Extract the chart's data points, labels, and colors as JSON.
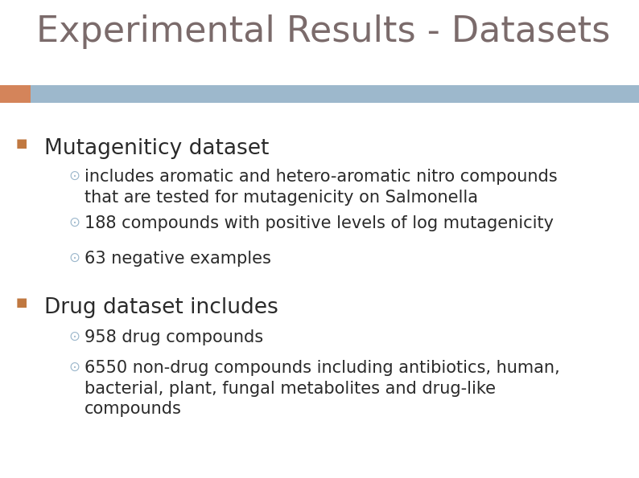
{
  "title": "Experimental Results - Datasets",
  "title_color": "#7B6B6B",
  "title_fontsize": 32,
  "header_bar_color": "#9DB8CC",
  "header_bar_left_accent_color": "#D4845A",
  "bg_color": "#FFFFFF",
  "bullet1_text": "Mutageniticy dataset",
  "bullet1_color": "#2A2A2A",
  "bullet1_fontsize": 19,
  "bullet1_marker_color": "#C07840",
  "subbullets1": [
    "includes aromatic and hetero-aromatic nitro compounds\nthat are tested for mutagenicity on Salmonella",
    "188 compounds with positive levels of log mutagenicity",
    "63 negative examples"
  ],
  "bullet2_text": "Drug dataset includes",
  "bullet2_color": "#2A2A2A",
  "bullet2_fontsize": 19,
  "bullet2_marker_color": "#C07840",
  "subbullets2": [
    "958 drug compounds",
    "6550 non-drug compounds including antibiotics, human,\nbacterial, plant, fungal metabolites and drug-like\ncompounds"
  ],
  "subbullet_color": "#2A2A2A",
  "subbullet_fontsize": 15,
  "subbullet_marker_color": "#9DB8CC",
  "fig_width": 7.94,
  "fig_height": 5.95,
  "dpi": 100
}
